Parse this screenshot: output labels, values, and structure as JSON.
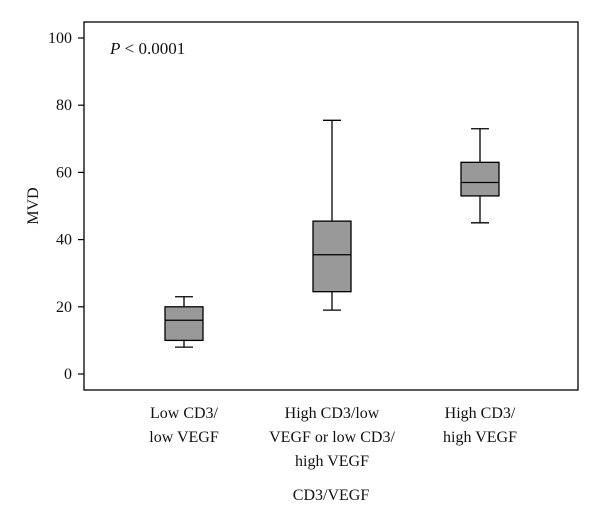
{
  "chart_data": {
    "type": "box",
    "ylabel": "MVD",
    "xlabel": "CD3/VEGF",
    "ylim": [
      0,
      100
    ],
    "yticks": [
      0,
      20,
      40,
      60,
      80,
      100
    ],
    "annotation": {
      "p_italic": "P",
      "rest": " < 0.0001"
    },
    "grid": false,
    "box_color": "#999999",
    "categories": [
      {
        "label_lines": [
          "Low CD3/",
          "low VEGF"
        ],
        "min": 8,
        "q1": 10,
        "median": 16,
        "q3": 20,
        "max": 23
      },
      {
        "label_lines": [
          "High CD3/low",
          "VEGF or low CD3/",
          "high VEGF"
        ],
        "min": 19,
        "q1": 24.5,
        "median": 35.5,
        "q3": 45.5,
        "max": 75.5
      },
      {
        "label_lines": [
          "High CD3/",
          "high VEGF"
        ],
        "min": 45,
        "q1": 53,
        "median": 57,
        "q3": 63,
        "max": 73
      }
    ]
  }
}
